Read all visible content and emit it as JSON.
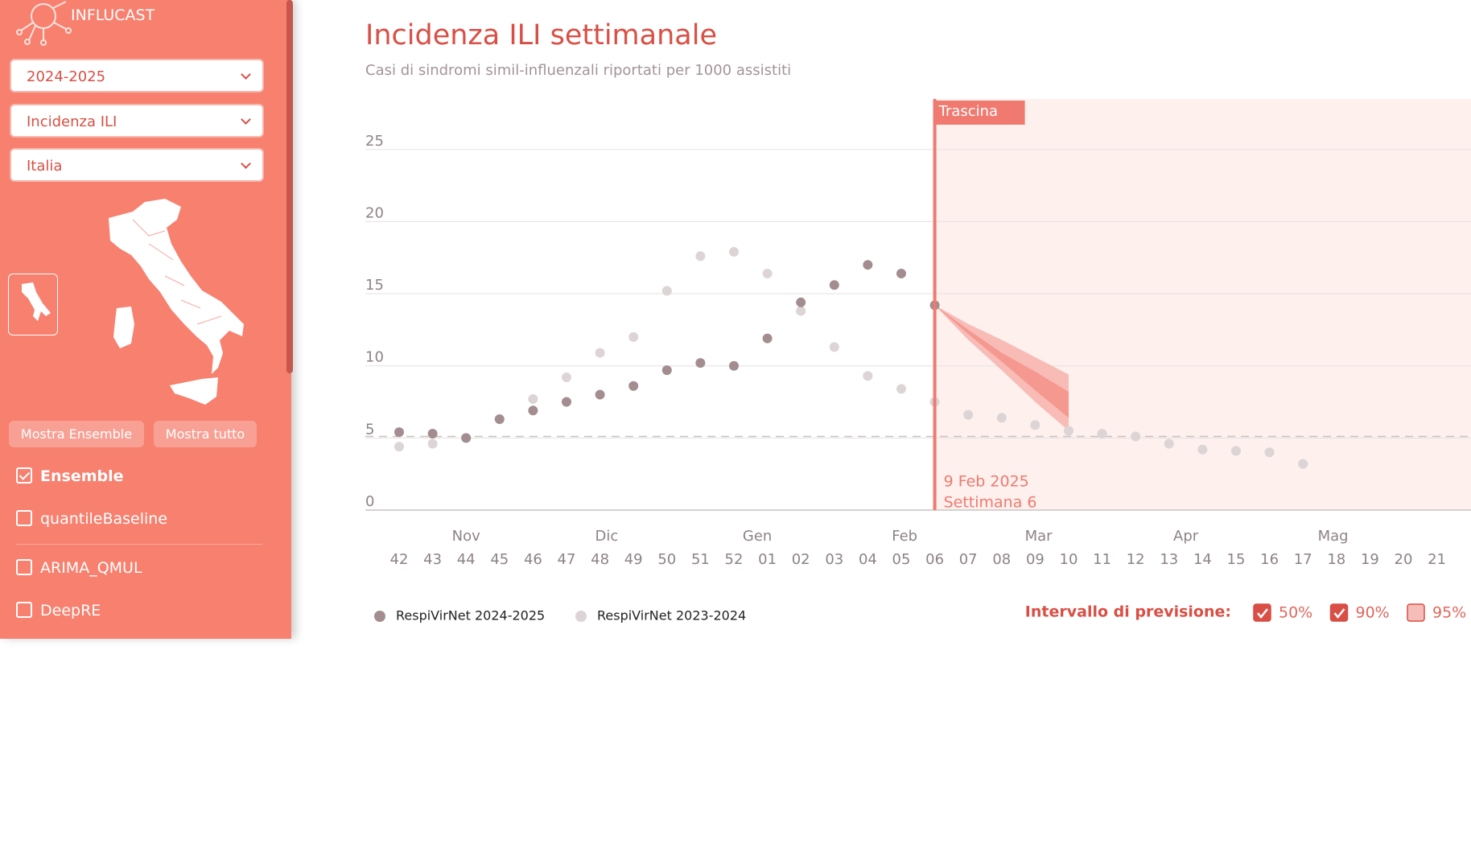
{
  "sidebar": {
    "logo": "INFLUCAST",
    "selects": [
      "2024-2025",
      "Incidenza ILI",
      "Italia"
    ],
    "buttons": [
      "Mostra Ensemble",
      "Mostra tutto"
    ],
    "models": [
      {
        "label": "Ensemble",
        "checked": true
      },
      {
        "label": "quantileBaseline",
        "checked": false
      },
      {
        "label": "ARIMA_QMUL",
        "checked": false
      },
      {
        "label": "DeepRE",
        "checked": false
      }
    ]
  },
  "chart_data": {
    "type": "scatter",
    "title": "Incidenza ILI settimanale",
    "subtitle": "Casi di sindromi simil-influenzali riportati per 1000 assistiti",
    "categories": [
      "42",
      "43",
      "44",
      "45",
      "46",
      "47",
      "48",
      "49",
      "50",
      "51",
      "52",
      "01",
      "02",
      "03",
      "04",
      "05",
      "06",
      "07",
      "08",
      "09",
      "10",
      "11",
      "12",
      "13",
      "14",
      "15",
      "16",
      "17",
      "18",
      "19",
      "20",
      "21"
    ],
    "month_labels": [
      "Nov",
      "Dic",
      "Gen",
      "Feb",
      "Mar",
      "Apr",
      "Mag"
    ],
    "series": [
      {
        "name": "RespiVirNet 2024-2025",
        "color": "#a48d90",
        "values": [
          5.4,
          5.3,
          5.0,
          6.3,
          6.9,
          7.5,
          8.0,
          8.6,
          9.7,
          10.2,
          10.0,
          11.9,
          14.4,
          15.6,
          17.0,
          16.4,
          14.2,
          null,
          null,
          null,
          null,
          null,
          null,
          null,
          null,
          null,
          null,
          null,
          null,
          null,
          null,
          null
        ]
      },
      {
        "name": "RespiVirNet 2023-2024",
        "color": "#dcd4d5",
        "values": [
          4.4,
          4.6,
          5.0,
          null,
          7.7,
          9.2,
          10.9,
          12.0,
          15.2,
          17.6,
          17.9,
          16.4,
          13.8,
          11.3,
          9.3,
          8.4,
          7.5,
          6.6,
          6.4,
          5.9,
          5.5,
          5.3,
          5.1,
          4.6,
          4.2,
          4.1,
          4.0,
          3.2,
          null,
          null,
          null,
          null
        ]
      }
    ],
    "interval_title": "Intervallo di previsione:",
    "intervals": [
      {
        "name": "90%",
        "checked": true,
        "color": "#f7b2aa",
        "lower": [
          null,
          null,
          null,
          null,
          null,
          null,
          null,
          null,
          null,
          null,
          null,
          null,
          null,
          null,
          null,
          null,
          14.2,
          11.8,
          9.7,
          7.5,
          5.5,
          null,
          null,
          null,
          null,
          null,
          null,
          null,
          null,
          null,
          null,
          null
        ],
        "upper": [
          null,
          null,
          null,
          null,
          null,
          null,
          null,
          null,
          null,
          null,
          null,
          null,
          null,
          null,
          null,
          null,
          14.2,
          12.9,
          11.8,
          10.6,
          9.4,
          null,
          null,
          null,
          null,
          null,
          null,
          null,
          null,
          null,
          null,
          null
        ]
      },
      {
        "name": "50%",
        "checked": true,
        "color": "#f3928a",
        "lower": [
          null,
          null,
          null,
          null,
          null,
          null,
          null,
          null,
          null,
          null,
          null,
          null,
          null,
          null,
          null,
          null,
          14.2,
          12.2,
          10.3,
          8.3,
          6.4,
          null,
          null,
          null,
          null,
          null,
          null,
          null,
          null,
          null,
          null,
          null
        ],
        "upper": [
          null,
          null,
          null,
          null,
          null,
          null,
          null,
          null,
          null,
          null,
          null,
          null,
          null,
          null,
          null,
          null,
          14.2,
          12.5,
          10.9,
          9.6,
          8.2,
          null,
          null,
          null,
          null,
          null,
          null,
          null,
          null,
          null,
          null,
          null
        ]
      },
      {
        "name": "95%",
        "checked": false,
        "color": "#f9c8c2"
      }
    ],
    "threshold": 5.1,
    "drag_label": "Trascina",
    "selected_date": "9 Feb 2025",
    "selected_week": "Settimana 6",
    "ylim": [
      0,
      28.5
    ],
    "yticks": [
      0,
      5,
      10,
      15,
      20,
      25
    ],
    "grid": true
  }
}
